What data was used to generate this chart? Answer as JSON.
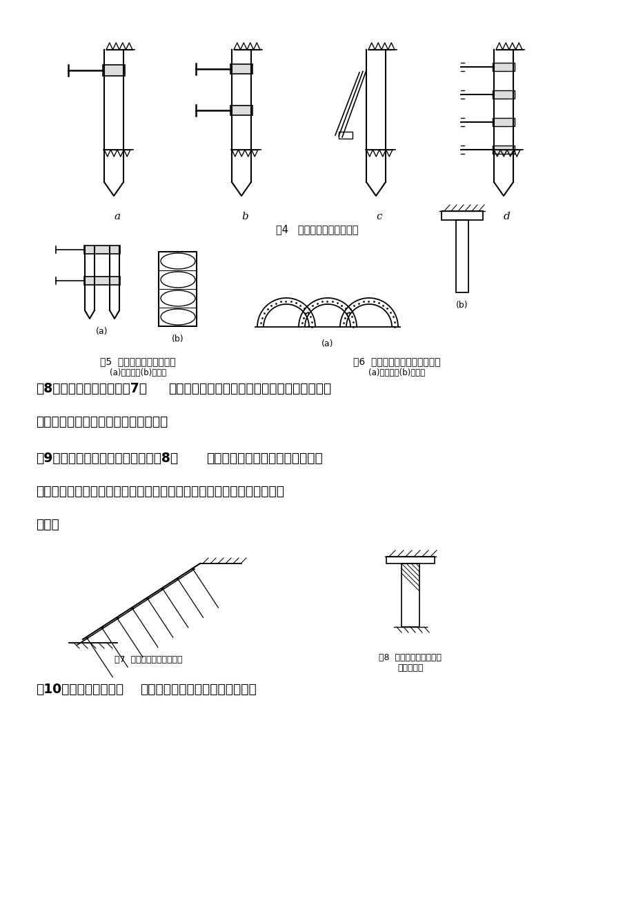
{
  "bg_color": "#ffffff",
  "line_color": "#000000",
  "fig4_caption": "图4   内撑式支护结构示意图",
  "fig5_caption": "图5  门架式支护结构示意图",
  "fig5_sub": "(a)剖面图；(b)平面图",
  "fig6_caption": "图6  拱式组合型支护结构示意图",
  "fig6_sub": "(a)剖面图；(b)平面图",
  "fig7_caption": "图7  喷锚网支护结构示意图",
  "fig8_caption_line1": "图8  加筋水泥土挡墙支护",
  "fig8_caption_line2": "结构示意图",
  "para8_bold": "（8）喷锚网支护构造（图7）",
  "para8_rest": "，常用于土坡稳定加固，也有人将其归属于放坡",
  "para8_line2": "开挖不合用于含淤泥土和流砂的土层。",
  "para9_bold": "（9）加快水泥土挡墙支护构造（图8）",
  "para9_rest": "为克服水泥抗拉强度低，水泥重力",
  "para9_line2": "式挡墙支护深度小，往往在水泥土中插入型钢，形成加筋水泥土挡墙支护",
  "para9_line3": "构造。",
  "para10_bold": "（10）沉井支护构造，",
  "para10_rest": "采用沉井支护构造形成支护体系。",
  "label_a": "a",
  "label_b": "b",
  "label_c": "c",
  "label_d": "d"
}
